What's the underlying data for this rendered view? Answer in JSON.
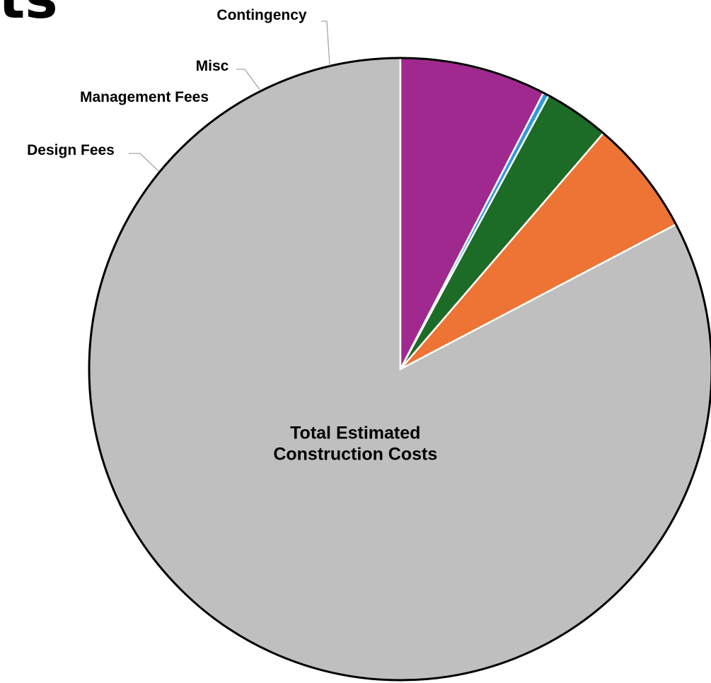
{
  "title_fragment": "ts",
  "chart_data": {
    "type": "pie",
    "start": "12 o'clock",
    "direction": "counterclockwise",
    "slices": [
      {
        "label": "Total Estimated Construction Costs",
        "label_lines": [
          "Total Estimated",
          "Construction Costs"
        ],
        "value": 82.7,
        "color": "#bfbfbf",
        "label_placement": "inside"
      },
      {
        "label": "Design Fees",
        "label_lines": [
          "Design Fees"
        ],
        "value": 6.0,
        "color": "#ed7434",
        "label_placement": "outside"
      },
      {
        "label": "Management Fees",
        "label_lines": [
          "Management Fees"
        ],
        "value": 3.4,
        "color": "#1c6b27",
        "label_placement": "outside"
      },
      {
        "label": "Misc",
        "label_lines": [
          "Misc"
        ],
        "value": 0.3,
        "color": "#2e9bd6",
        "label_placement": "outside"
      },
      {
        "label": "Contingency",
        "label_lines": [
          "Contingency"
        ],
        "value": 7.6,
        "color": "#a0298f",
        "label_placement": "outside"
      }
    ]
  }
}
